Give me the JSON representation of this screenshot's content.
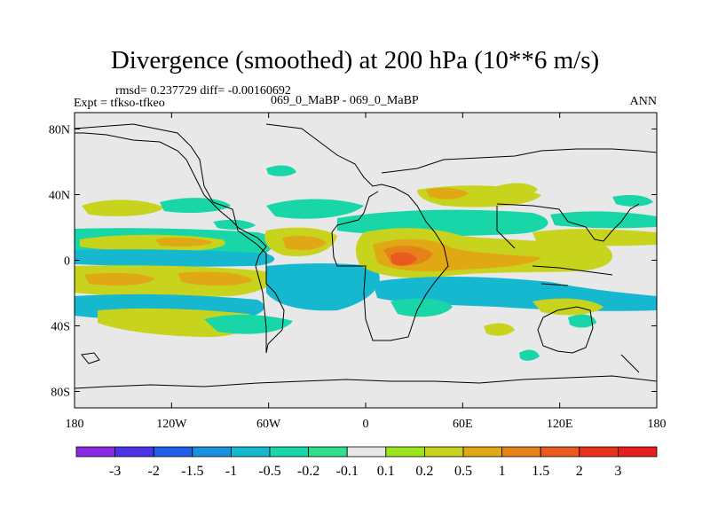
{
  "header": {
    "title": "Divergence (smoothed) at 200 hPa (10**6 m/s)",
    "rmsd_line": "rmsd= 0.237729 diff= -0.00160692",
    "expt_line": "Expt = tfkso-tfkeo",
    "cases_line": "069_0_MaBP - 069_0_MaBP",
    "season": "ANN"
  },
  "chart_data": {
    "type": "heatmap",
    "title": "Divergence (smoothed) at 200 hPa (10**6 m/s)",
    "x_ticks": [
      "180",
      "120W",
      "60W",
      "0",
      "60E",
      "120E",
      "180"
    ],
    "x_tick_values": [
      -180,
      -120,
      -60,
      0,
      60,
      120,
      180
    ],
    "y_ticks": [
      "80N",
      "40N",
      "0",
      "40S",
      "80S"
    ],
    "y_tick_values": [
      80,
      40,
      0,
      -40,
      -80
    ],
    "xlim": [
      -180,
      180
    ],
    "ylim": [
      -90,
      90
    ],
    "colorbar": {
      "labels": [
        "-3",
        "-2",
        "-1.5",
        "-1",
        "-0.5",
        "-0.2",
        "-0.1",
        "0.1",
        "0.2",
        "0.5",
        "1",
        "1.5",
        "2",
        "3"
      ],
      "colors": [
        "#8a2be2",
        "#4d33e6",
        "#1f5ee6",
        "#1a90e0",
        "#16b8cf",
        "#18d6a8",
        "#2ee08a",
        "#e8e8e8",
        "#9be51c",
        "#c8d31e",
        "#e0a815",
        "#e6821a",
        "#e85a1e",
        "#e8321e",
        "#e81e1e"
      ]
    },
    "features": [
      {
        "name": "North Pacific positive band",
        "lon": [
          -175,
          -140
        ],
        "lat": [
          20,
          30
        ],
        "value": 0.5
      },
      {
        "name": "Tropical Pacific positive band north",
        "lon": [
          -180,
          -120
        ],
        "lat": [
          8,
          18
        ],
        "value": 0.5
      },
      {
        "name": "Equatorial Pacific negative band",
        "lon": [
          -180,
          -95
        ],
        "lat": [
          -2,
          10
        ],
        "value": -0.5
      },
      {
        "name": "South Pacific positive band",
        "lon": [
          -180,
          -100
        ],
        "lat": [
          -24,
          -6
        ],
        "value": 0.5
      },
      {
        "name": "South Pacific negative band",
        "lon": [
          -180,
          -100
        ],
        "lat": [
          -36,
          -22
        ],
        "value": -0.5
      },
      {
        "name": "Atlantic negative band",
        "lon": [
          -90,
          10
        ],
        "lat": [
          -30,
          -15
        ],
        "value": -0.5
      },
      {
        "name": "Tropical Atlantic positive patch",
        "lon": [
          -40,
          -5
        ],
        "lat": [
          -5,
          10
        ],
        "value": 1.0
      },
      {
        "name": "Central Africa positive maximum",
        "lon": [
          10,
          45
        ],
        "lat": [
          -10,
          8
        ],
        "value": 2.0
      },
      {
        "name": "Indian Ocean positive band",
        "lon": [
          40,
          130
        ],
        "lat": [
          -5,
          5
        ],
        "value": 0.5
      },
      {
        "name": "Maritime negative band",
        "lon": [
          40,
          175
        ],
        "lat": [
          -20,
          -8
        ],
        "value": -0.5
      },
      {
        "name": "Asia positive band",
        "lon": [
          30,
          130
        ],
        "lat": [
          25,
          38
        ],
        "value": 0.5
      },
      {
        "name": "Asia negative band",
        "lon": [
          10,
          130
        ],
        "lat": [
          10,
          24
        ],
        "value": -0.5
      },
      {
        "name": "Southern Ocean positive patches",
        "lon": [
          -160,
          160
        ],
        "lat": [
          -48,
          -38
        ],
        "value": 0.5
      }
    ]
  }
}
